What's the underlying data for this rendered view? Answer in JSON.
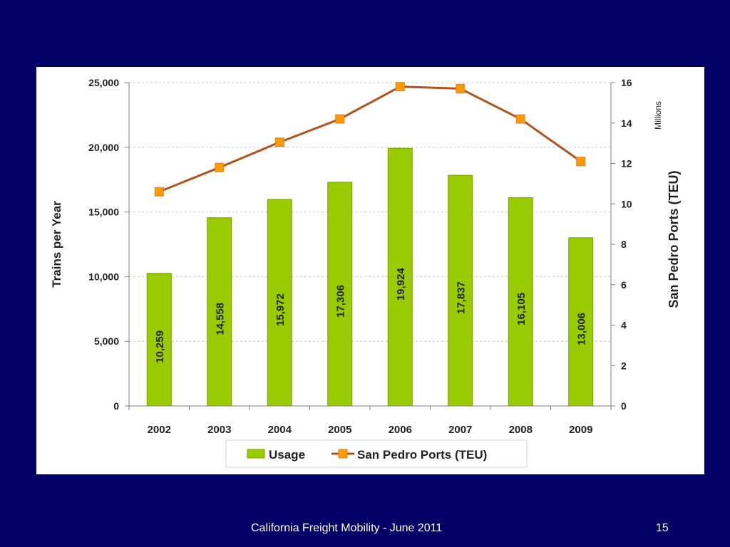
{
  "footer": {
    "title": "California Freight Mobility - June  2011",
    "page_number": "15"
  },
  "colors": {
    "background": "#000066",
    "bar_fill": "#99cc00",
    "bar_stroke": "#7a9e00",
    "line": "#b0541c",
    "marker": "#ff9900"
  },
  "chart_data": {
    "type": "bar",
    "categories": [
      "2002",
      "2003",
      "2004",
      "2005",
      "2006",
      "2007",
      "2008",
      "2009"
    ],
    "series": [
      {
        "name": "Usage",
        "type": "bar",
        "axis": "left",
        "values": [
          10259,
          14558,
          15972,
          17306,
          19924,
          17837,
          16105,
          13006
        ],
        "data_labels": [
          "10,259",
          "14,558",
          "15,972",
          "17,306",
          "19,924",
          "17,837",
          "16,105",
          "13,006"
        ]
      },
      {
        "name": "San Pedro Ports (TEU)",
        "type": "line",
        "axis": "right",
        "values": [
          10.6,
          11.8,
          13.05,
          14.2,
          15.8,
          15.7,
          14.2,
          12.1
        ]
      }
    ],
    "ylabel": "Trains per Year",
    "ylabel_right": "San Pedro Ports (TEU)",
    "right_axis_unit": "Millions",
    "ylim": [
      0,
      25000
    ],
    "ylim_right": [
      0,
      16
    ],
    "yticks": [
      "0",
      "5,000",
      "10,000",
      "15,000",
      "20,000",
      "25,000"
    ],
    "yticks_right": [
      "0",
      "2",
      "4",
      "6",
      "8",
      "10",
      "12",
      "14",
      "16"
    ],
    "grid": true,
    "legend_position": "bottom"
  }
}
